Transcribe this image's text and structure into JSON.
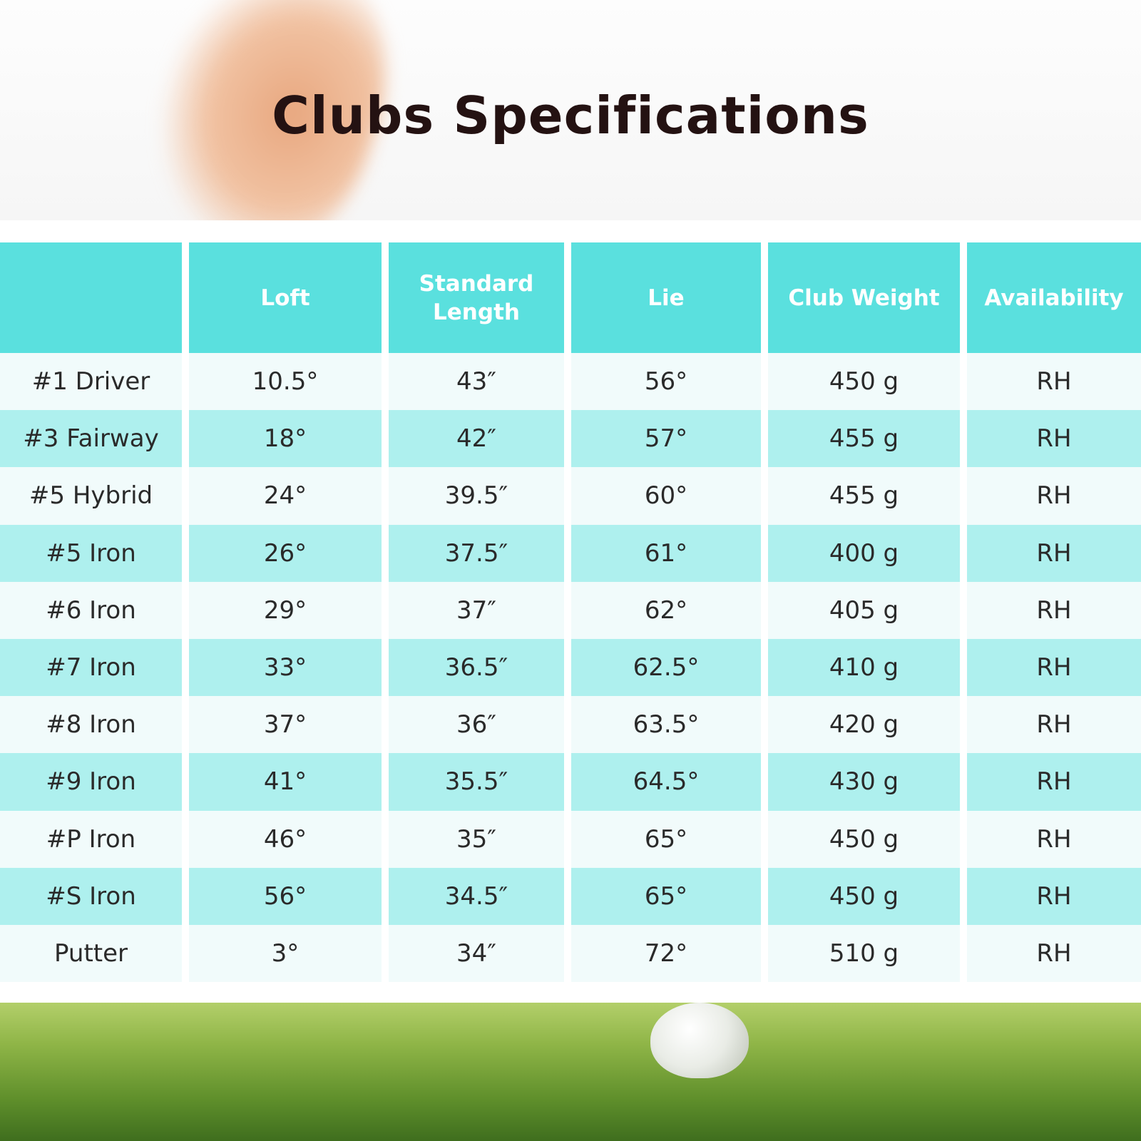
{
  "title": "Clubs Specifications",
  "table": {
    "headers": [
      "Loft",
      "Standard Length",
      "Lie",
      "Club Weight",
      "Availability"
    ],
    "rows": [
      [
        "#1 Driver",
        "10.5°",
        "43″",
        "56°",
        "450 g",
        "RH"
      ],
      [
        "#3 Fairway",
        "18°",
        "42″",
        "57°",
        "455 g",
        "RH"
      ],
      [
        "#5 Hybrid",
        "24°",
        "39.5″",
        "60°",
        "455 g",
        "RH"
      ],
      [
        "#5 Iron",
        "26°",
        "37.5″",
        "61°",
        "400 g",
        "RH"
      ],
      [
        "#6 Iron",
        "29°",
        "37″",
        "62°",
        "405 g",
        "RH"
      ],
      [
        "#7 Iron",
        "33°",
        "36.5″",
        "62.5°",
        "410 g",
        "RH"
      ],
      [
        "#8 Iron",
        "37°",
        "36″",
        "63.5°",
        "420 g",
        "RH"
      ],
      [
        "#9 Iron",
        "41°",
        "35.5″",
        "64.5°",
        "430 g",
        "RH"
      ],
      [
        "#P Iron",
        "46°",
        "35″",
        "65°",
        "450 g",
        "RH"
      ],
      [
        "#S Iron",
        "56°",
        "34.5″",
        "65°",
        "450 g",
        "RH"
      ],
      [
        "Putter",
        "3°",
        "34″",
        "72°",
        "510 g",
        "RH"
      ]
    ]
  }
}
